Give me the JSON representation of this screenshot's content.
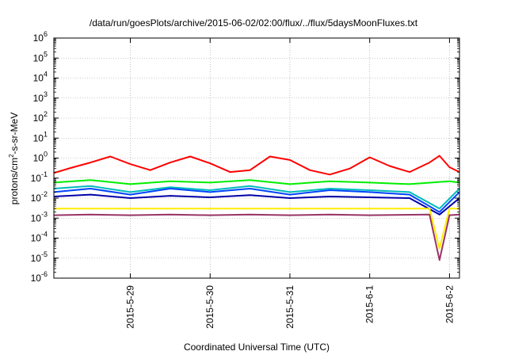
{
  "chart_data": {
    "type": "line",
    "title": "/data/run/goesPlots/archive/2015-06-02/02:00/flux/../flux/5daysMoonFluxes.txt",
    "xlabel": "Coordinated Universal Time (UTC)",
    "ylabel": {
      "pre": "protons/cm",
      "sup": "2",
      "post": "-s-sr-MeV"
    },
    "y_scale": "log",
    "ylim_exp": [
      -6,
      6
    ],
    "y_ticks": [
      {
        "base": "10",
        "exp": "6",
        "value": 6
      },
      {
        "base": "10",
        "exp": "5",
        "value": 5
      },
      {
        "base": "10",
        "exp": "4",
        "value": 4
      },
      {
        "base": "10",
        "exp": "3",
        "value": 3
      },
      {
        "base": "10",
        "exp": "2",
        "value": 2
      },
      {
        "base": "10",
        "exp": "1",
        "value": 1
      },
      {
        "base": "10",
        "exp": "0",
        "value": 0
      },
      {
        "base": "10",
        "exp": "-1",
        "value": -1
      },
      {
        "base": "10",
        "exp": "-2",
        "value": -2
      },
      {
        "base": "10",
        "exp": "-3",
        "value": -3
      },
      {
        "base": "10",
        "exp": "-4",
        "value": -4
      },
      {
        "base": "10",
        "exp": "-5",
        "value": -5
      },
      {
        "base": "10",
        "exp": "-6",
        "value": -6
      }
    ],
    "x_range": [
      "2015-05-28 01:00",
      "2015-06-02 03:00"
    ],
    "x_ticks": [
      {
        "label": "2015-5-29",
        "value": "2015-05-29"
      },
      {
        "label": "2015-5-30",
        "value": "2015-05-30"
      },
      {
        "label": "2015-5-31",
        "value": "2015-05-31"
      },
      {
        "label": "2015-6-1",
        "value": "2015-06-01"
      },
      {
        "label": "2015-6-2",
        "value": "2015-06-02"
      }
    ],
    "grid": true,
    "legend": "none",
    "series": [
      {
        "color": "#ff0000",
        "x": [
          "2015-05-28 01:00",
          "2015-05-28 06:00",
          "2015-05-28 12:00",
          "2015-05-28 18:00",
          "2015-05-29 00:00",
          "2015-05-29 06:00",
          "2015-05-29 12:00",
          "2015-05-29 18:00",
          "2015-05-30 00:00",
          "2015-05-30 06:00",
          "2015-05-30 12:00",
          "2015-05-30 18:00",
          "2015-05-31 00:00",
          "2015-05-31 06:00",
          "2015-05-31 12:00",
          "2015-05-31 18:00",
          "2015-06-01 00:00",
          "2015-06-01 06:00",
          "2015-06-01 12:00",
          "2015-06-01 18:00",
          "2015-06-01 21:00",
          "2015-06-02 00:00",
          "2015-06-02 03:00"
        ],
        "values": [
          0.18,
          0.32,
          0.6,
          1.2,
          0.5,
          0.25,
          0.6,
          1.2,
          0.55,
          0.2,
          0.25,
          1.2,
          0.8,
          0.25,
          0.15,
          0.3,
          1.1,
          0.4,
          0.2,
          0.6,
          1.3,
          0.35,
          0.2
        ]
      },
      {
        "color": "#00ee00",
        "x": [
          "2015-05-28 01:00",
          "2015-05-28 12:00",
          "2015-05-29 00:00",
          "2015-05-29 12:00",
          "2015-05-30 00:00",
          "2015-05-30 12:00",
          "2015-05-31 00:00",
          "2015-05-31 12:00",
          "2015-06-01 00:00",
          "2015-06-01 12:00",
          "2015-06-02 00:00",
          "2015-06-02 03:00"
        ],
        "values": [
          0.06,
          0.08,
          0.05,
          0.07,
          0.06,
          0.08,
          0.05,
          0.07,
          0.06,
          0.05,
          0.07,
          0.06
        ]
      },
      {
        "color": "#00bbbb",
        "x": [
          "2015-05-28 01:00",
          "2015-05-28 12:00",
          "2015-05-29 00:00",
          "2015-05-29 12:00",
          "2015-05-30 00:00",
          "2015-05-30 12:00",
          "2015-05-31 00:00",
          "2015-05-31 12:00",
          "2015-06-01 00:00",
          "2015-06-01 12:00",
          "2015-06-01 21:00",
          "2015-06-02 03:00"
        ],
        "values": [
          0.03,
          0.04,
          0.02,
          0.035,
          0.025,
          0.04,
          0.02,
          0.03,
          0.025,
          0.02,
          0.003,
          0.03
        ]
      },
      {
        "color": "#0044ff",
        "x": [
          "2015-05-28 01:00",
          "2015-05-28 12:00",
          "2015-05-29 00:00",
          "2015-05-29 12:00",
          "2015-05-30 00:00",
          "2015-05-30 12:00",
          "2015-05-31 00:00",
          "2015-05-31 12:00",
          "2015-06-01 00:00",
          "2015-06-01 12:00",
          "2015-06-01 21:00",
          "2015-06-02 03:00"
        ],
        "values": [
          0.02,
          0.03,
          0.015,
          0.03,
          0.02,
          0.03,
          0.015,
          0.025,
          0.02,
          0.015,
          0.002,
          0.02
        ]
      },
      {
        "color": "#0000aa",
        "x": [
          "2015-05-28 01:00",
          "2015-05-28 12:00",
          "2015-05-29 00:00",
          "2015-05-29 12:00",
          "2015-05-30 00:00",
          "2015-05-30 12:00",
          "2015-05-31 00:00",
          "2015-05-31 12:00",
          "2015-06-01 00:00",
          "2015-06-01 12:00",
          "2015-06-01 21:00",
          "2015-06-02 03:00"
        ],
        "values": [
          0.012,
          0.015,
          0.01,
          0.013,
          0.011,
          0.014,
          0.01,
          0.012,
          0.011,
          0.01,
          0.0015,
          0.01
        ]
      },
      {
        "color": "#ffee00",
        "x": [
          "2015-05-28 01:00",
          "2015-05-29 00:00",
          "2015-05-30 00:00",
          "2015-05-31 00:00",
          "2015-06-01 00:00",
          "2015-06-01 18:00",
          "2015-06-01 21:00",
          "2015-06-02 00:00",
          "2015-06-02 03:00"
        ],
        "values": [
          0.003,
          0.003,
          0.003,
          0.003,
          0.003,
          0.003,
          3e-05,
          0.003,
          0.003
        ]
      },
      {
        "color": "#993366",
        "x": [
          "2015-05-28 01:00",
          "2015-05-28 12:00",
          "2015-05-29 00:00",
          "2015-05-29 12:00",
          "2015-05-30 00:00",
          "2015-05-30 12:00",
          "2015-05-31 00:00",
          "2015-05-31 12:00",
          "2015-06-01 00:00",
          "2015-06-01 18:00",
          "2015-06-01 21:00",
          "2015-06-02 00:00",
          "2015-06-02 03:00"
        ],
        "values": [
          0.0014,
          0.0015,
          0.0014,
          0.0015,
          0.0014,
          0.0015,
          0.0014,
          0.0015,
          0.0014,
          0.0015,
          8e-06,
          0.0014,
          0.0015
        ]
      }
    ]
  }
}
